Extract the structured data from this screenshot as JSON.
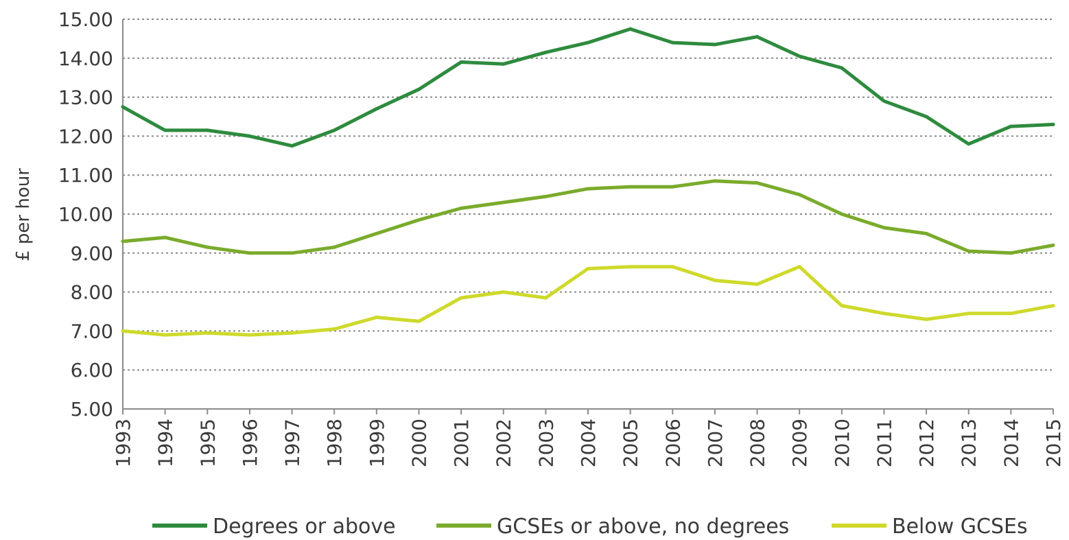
{
  "chart_data": {
    "type": "line",
    "title": "",
    "xlabel": "",
    "ylabel": "£ per hour",
    "ylim": [
      5,
      15
    ],
    "yticks": [
      "5.00",
      "6.00",
      "7.00",
      "8.00",
      "9.00",
      "10.00",
      "11.00",
      "12.00",
      "13.00",
      "14.00",
      "15.00"
    ],
    "grid": "horizontal dotted",
    "legend_position": "bottom",
    "categories": [
      "1993",
      "1994",
      "1995",
      "1996",
      "1997",
      "1998",
      "1999",
      "2000",
      "2001",
      "2002",
      "2003",
      "2004",
      "2005",
      "2006",
      "2007",
      "2008",
      "2009",
      "2010",
      "2011",
      "2012",
      "2013",
      "2014",
      "2015"
    ],
    "series": [
      {
        "name": "Degrees or above",
        "color": "#2e8b3e",
        "values": [
          12.75,
          12.15,
          12.15,
          12.0,
          11.75,
          12.15,
          12.7,
          13.2,
          13.9,
          13.85,
          14.15,
          14.4,
          14.75,
          14.4,
          14.35,
          14.55,
          14.05,
          13.75,
          12.9,
          12.5,
          11.8,
          12.25,
          12.3
        ]
      },
      {
        "name": "GCSEs or above, no degrees",
        "color": "#7aab2c",
        "values": [
          9.3,
          9.4,
          9.15,
          9.0,
          9.0,
          9.15,
          9.5,
          9.85,
          10.15,
          10.3,
          10.45,
          10.65,
          10.7,
          10.7,
          10.85,
          10.8,
          10.5,
          10.0,
          9.65,
          9.5,
          9.05,
          9.0,
          9.2
        ]
      },
      {
        "name": "Below GCSEs",
        "color": "#cfd92b",
        "values": [
          7.0,
          6.9,
          6.95,
          6.9,
          6.95,
          7.05,
          7.35,
          7.25,
          7.85,
          8.0,
          7.85,
          8.6,
          8.65,
          8.65,
          8.3,
          8.2,
          8.65,
          7.65,
          7.45,
          7.3,
          7.45,
          7.45,
          7.65
        ]
      }
    ]
  }
}
